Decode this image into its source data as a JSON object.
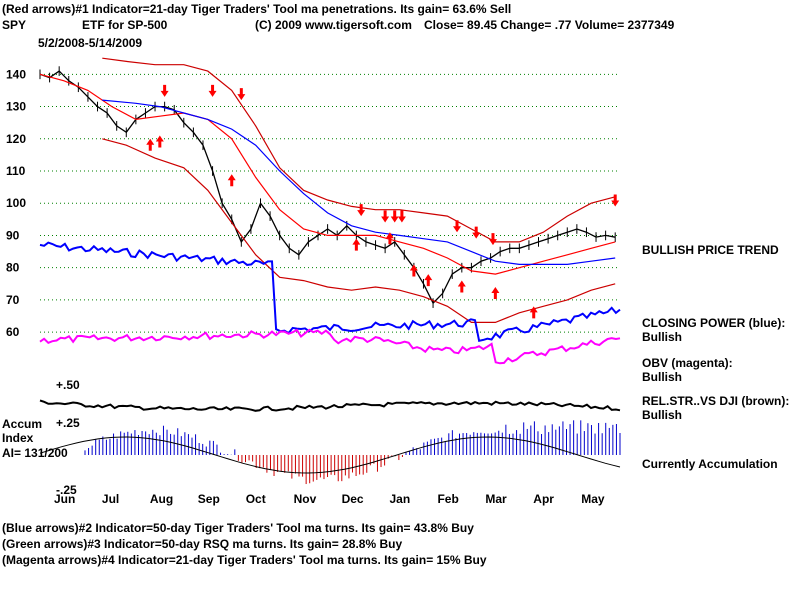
{
  "header": {
    "line1": "(Red arrows)#1 Indicator=21-day Tiger Traders' Tool ma penetrations. Its gain= 63.6% Sell",
    "symbol": "SPY",
    "desc": "ETF for SP-500",
    "copyright": "(C) 2009 www.tigersoft.com",
    "quote": "Close=  89.45   Change= .77  Volume=  2377349",
    "daterange": "5/2/2008-5/14/2009"
  },
  "right_labels": {
    "trend": "BULLISH PRICE TREND",
    "cp_title": "CLOSING POWER (blue):",
    "cp_value": "Bullish",
    "obv_title": "OBV (magenta):",
    "obv_value": "Bullish",
    "rel_title": "REL.STR..VS DJI (brown):",
    "rel_value": "Bullish",
    "accum": "Currently Accumulation"
  },
  "left_labels": {
    "accum": "Accum",
    "index": "Index",
    "ai": "AI= 131/200"
  },
  "footer": {
    "line1": "(Blue arrows)#2 Indicator=50-day Tiger Traders' Tool ma turns. Its gain= 43.8% Buy",
    "line2": "(Green arrows)#3 Indicator=50-day RSQ ma turns. Its gain= 28.8% Buy",
    "line3": "(Magenta arrows)#4 Indicator=21-day Tiger Traders' Tool ma turns. Its gain= 15% Buy"
  },
  "colors": {
    "price": "#000000",
    "ma21": "#ff0000",
    "band": "#cc0000",
    "ma50": "#0000ff",
    "closing_power": "#0000ff",
    "obv": "#ff00ff",
    "relstr": "#000000",
    "accum_pos": "#0000cc",
    "accum_neg": "#cc0000",
    "grid": "#008000",
    "arrow": "#ff0000"
  },
  "chart_data": {
    "type": "line",
    "yticks": [
      140,
      130,
      120,
      110,
      100,
      90,
      80,
      70,
      60
    ],
    "ylim": [
      56,
      146
    ],
    "xticks": [
      "Jun",
      "Jul",
      "Aug",
      "Sep",
      "Oct",
      "Nov",
      "Dec",
      "Jan",
      "Feb",
      "Mar",
      "Apr",
      "May"
    ],
    "xlim": [
      0,
      12.1
    ],
    "grid": true,
    "series": [
      {
        "key": "price",
        "x": [
          0,
          0.2,
          0.4,
          0.6,
          0.8,
          1.0,
          1.2,
          1.4,
          1.6,
          1.8,
          2.0,
          2.2,
          2.4,
          2.6,
          2.8,
          3.0,
          3.2,
          3.4,
          3.6,
          3.8,
          4.0,
          4.2,
          4.4,
          4.6,
          4.8,
          5.0,
          5.2,
          5.4,
          5.6,
          5.8,
          6.0,
          6.2,
          6.4,
          6.6,
          6.8,
          7.0,
          7.2,
          7.4,
          7.6,
          7.8,
          8.0,
          8.2,
          8.4,
          8.6,
          8.8,
          9.0,
          9.2,
          9.4,
          9.6,
          9.8,
          10.0,
          10.2,
          10.4,
          10.6,
          10.8,
          11.0,
          11.2,
          11.4,
          11.6,
          11.8,
          12.0
        ],
        "y": [
          140,
          139,
          141,
          138,
          136,
          133,
          130,
          128,
          124,
          122,
          126,
          128,
          130,
          130,
          129,
          125,
          122,
          118,
          110,
          100,
          95,
          88,
          92,
          100,
          96,
          90,
          86,
          84,
          88,
          90,
          92,
          90,
          93,
          90,
          88,
          87,
          86,
          88,
          84,
          80,
          75,
          69,
          72,
          78,
          80,
          80,
          82,
          83,
          85,
          86,
          86,
          87,
          88,
          89,
          90,
          91,
          92,
          91,
          89.5,
          90,
          89.45
        ]
      },
      {
        "key": "ma21",
        "x": [
          0,
          0.5,
          1,
          1.5,
          2,
          2.5,
          3,
          3.5,
          4,
          4.5,
          5,
          5.5,
          6,
          6.5,
          7,
          7.5,
          8,
          8.5,
          9,
          9.5,
          10,
          10.5,
          11,
          11.5,
          12
        ],
        "y": [
          140,
          138,
          135,
          130,
          126,
          127,
          128,
          126,
          120,
          108,
          98,
          92,
          90,
          90,
          90,
          88,
          86,
          83,
          79,
          78,
          80,
          82,
          84,
          86,
          88
        ]
      },
      {
        "key": "band_upper",
        "x": [
          1.3,
          1.8,
          2.4,
          3,
          3.5,
          4,
          4.5,
          5,
          5.5,
          6,
          6.5,
          7,
          7.5,
          8,
          8.5,
          9,
          9.5,
          10,
          10.5,
          11,
          11.5,
          12
        ],
        "y": [
          145,
          144,
          143,
          143,
          141,
          135,
          124,
          111,
          104,
          101,
          99,
          98,
          98,
          97,
          96,
          92,
          88,
          88,
          91,
          96,
          100,
          102
        ]
      },
      {
        "key": "band_lower",
        "x": [
          1.3,
          1.8,
          2.4,
          3,
          3.5,
          4,
          4.5,
          5,
          5.5,
          6,
          6.5,
          7,
          7.5,
          8,
          8.5,
          9,
          9.5,
          10,
          10.5,
          11,
          11.5,
          12
        ],
        "y": [
          120,
          118,
          114,
          111,
          104,
          94,
          84,
          77,
          76,
          74,
          73,
          74,
          73,
          71,
          68,
          63,
          63,
          66,
          68,
          70,
          73,
          75
        ]
      },
      {
        "key": "ma50",
        "x": [
          1.3,
          2,
          2.5,
          3,
          3.5,
          4,
          4.5,
          5,
          5.5,
          6,
          6.5,
          7,
          7.5,
          8,
          8.5,
          9,
          9.5,
          10,
          10.5,
          11,
          11.5,
          12
        ],
        "y": [
          132,
          131,
          130,
          128,
          126,
          123,
          118,
          110,
          103,
          97,
          93,
          91,
          90,
          89,
          88,
          85,
          82,
          81,
          81,
          81,
          82,
          83
        ]
      }
    ],
    "markers": {
      "red_down": [
        [
          2.6,
          133
        ],
        [
          3.6,
          133
        ],
        [
          4.2,
          132
        ],
        [
          6.7,
          96
        ],
        [
          7.2,
          94
        ],
        [
          7.4,
          94
        ],
        [
          7.55,
          94
        ],
        [
          8.7,
          91
        ],
        [
          9.1,
          89
        ],
        [
          9.45,
          87
        ],
        [
          12,
          99
        ]
      ],
      "red_up": [
        [
          2.3,
          120
        ],
        [
          2.5,
          121
        ],
        [
          4.0,
          109
        ],
        [
          6.6,
          89
        ],
        [
          7.3,
          91
        ],
        [
          7.8,
          81
        ],
        [
          8.1,
          78
        ],
        [
          8.8,
          76
        ],
        [
          9.5,
          74
        ],
        [
          10.3,
          68
        ]
      ]
    }
  }
}
